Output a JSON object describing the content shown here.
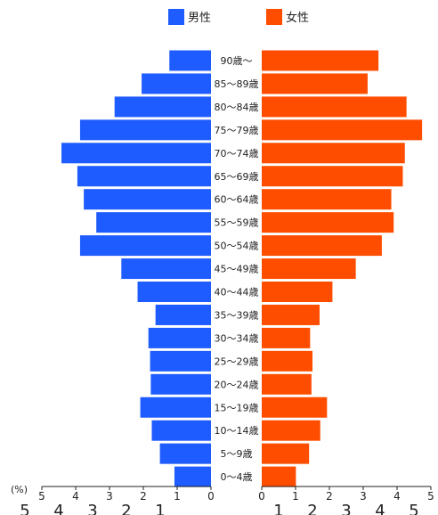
{
  "chart_data": {
    "type": "bar",
    "orientation": "horizontal",
    "layout": "population-pyramid",
    "categories": [
      "0〜4歳",
      "5〜9歳",
      "10〜14歳",
      "15〜19歳",
      "20〜24歳",
      "25〜29歳",
      "30〜34歳",
      "35〜39歳",
      "40〜44歳",
      "45〜49歳",
      "50〜54歳",
      "55〜59歳",
      "60〜64歳",
      "65〜69歳",
      "70〜74歳",
      "75〜79歳",
      "80〜84歳",
      "85〜89歳",
      "90歳〜"
    ],
    "series": [
      {
        "name": "男性",
        "color": "#1f5cff",
        "side": "left",
        "values": [
          1.08,
          1.51,
          1.75,
          2.09,
          1.78,
          1.8,
          1.85,
          1.64,
          2.17,
          2.65,
          3.87,
          3.39,
          3.76,
          3.95,
          4.42,
          3.87,
          2.85,
          2.05,
          1.23
        ]
      },
      {
        "name": "女性",
        "color": "#ff4d00",
        "side": "right",
        "values": [
          1.01,
          1.4,
          1.73,
          1.93,
          1.47,
          1.5,
          1.43,
          1.71,
          2.09,
          2.78,
          3.55,
          3.9,
          3.83,
          4.17,
          4.23,
          4.74,
          4.28,
          3.13,
          3.45
        ]
      }
    ],
    "xlim": [
      0,
      5
    ],
    "xticks": [
      0,
      1,
      2,
      3,
      4,
      5
    ],
    "unit_label": "(%)",
    "legend_position": "top-center",
    "grid": false
  }
}
